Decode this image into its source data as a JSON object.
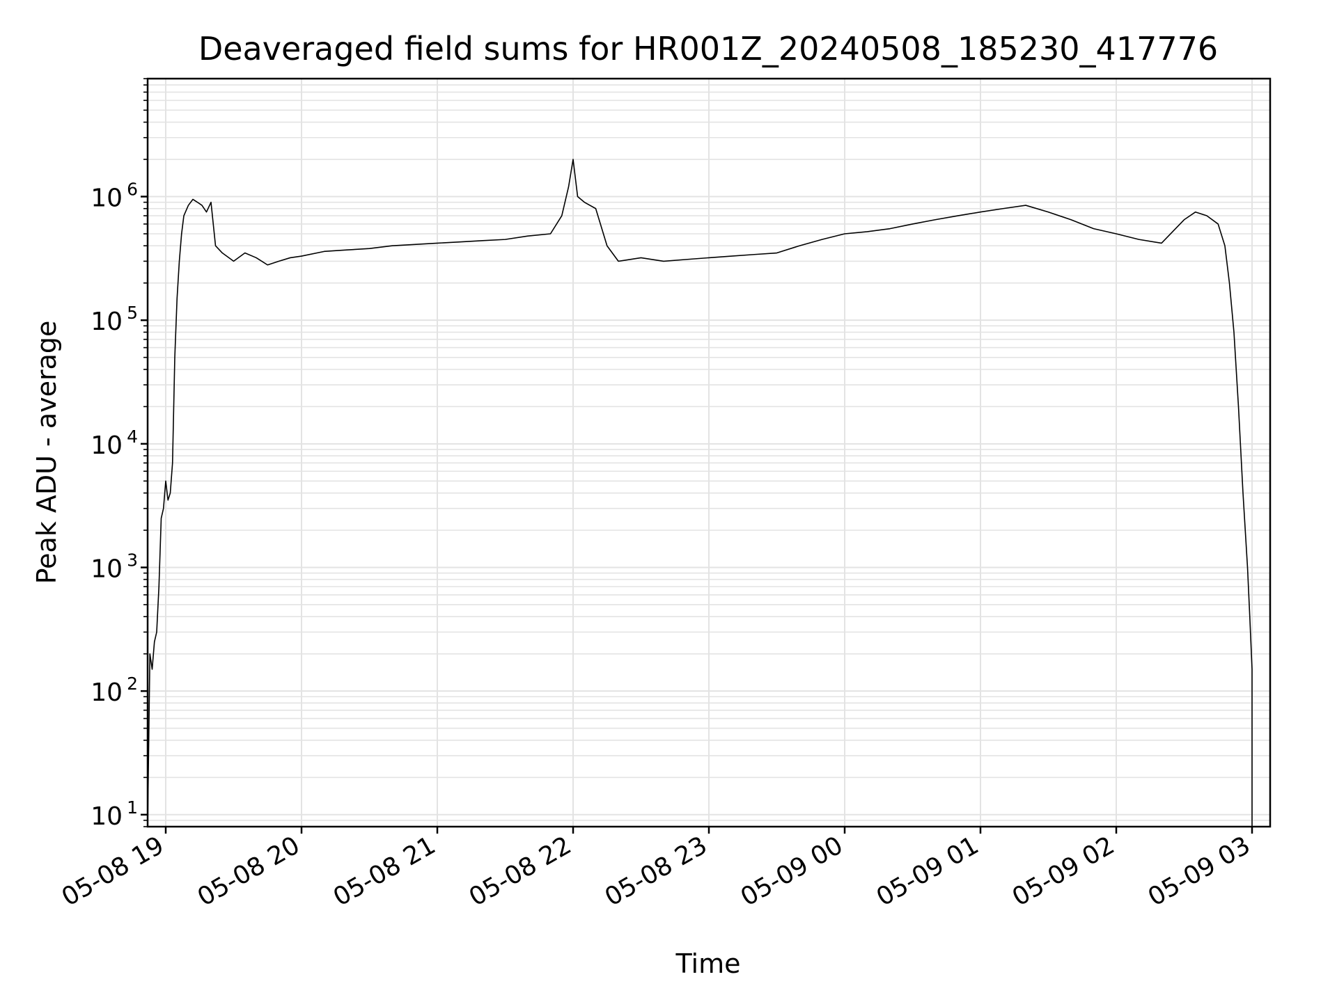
{
  "chart_data": {
    "type": "line",
    "title": "Deaveraged field sums for HR001Z_20240508_185230_417776",
    "xlabel": "Time",
    "ylabel": "Peak ADU - average",
    "yscale": "log",
    "ylim": [
      8,
      9000000
    ],
    "xlim": [
      "2024-05-08 18:52",
      "2024-05-09 03:08"
    ],
    "grid": true,
    "line_color": "#000000",
    "grid_color": "#e3e3e3",
    "x_ticks": [
      {
        "value": "2024-05-08 19:00",
        "label": "05-08 19"
      },
      {
        "value": "2024-05-08 20:00",
        "label": "05-08 20"
      },
      {
        "value": "2024-05-08 21:00",
        "label": "05-08 21"
      },
      {
        "value": "2024-05-08 22:00",
        "label": "05-08 22"
      },
      {
        "value": "2024-05-08 23:00",
        "label": "05-08 23"
      },
      {
        "value": "2024-05-09 00:00",
        "label": "05-09 00"
      },
      {
        "value": "2024-05-09 01:00",
        "label": "05-09 01"
      },
      {
        "value": "2024-05-09 02:00",
        "label": "05-09 02"
      },
      {
        "value": "2024-05-09 03:00",
        "label": "05-09 03"
      }
    ],
    "y_ticks": [
      {
        "value": 10,
        "base": "10",
        "exp": "1"
      },
      {
        "value": 100,
        "base": "10",
        "exp": "2"
      },
      {
        "value": 1000,
        "base": "10",
        "exp": "3"
      },
      {
        "value": 10000,
        "base": "10",
        "exp": "4"
      },
      {
        "value": 100000,
        "base": "10",
        "exp": "5"
      },
      {
        "value": 1000000,
        "base": "10",
        "exp": "6"
      }
    ],
    "series": [
      {
        "points": [
          [
            "2024-05-08 18:52",
            8
          ],
          [
            "2024-05-08 18:53",
            200
          ],
          [
            "2024-05-08 18:54",
            150
          ],
          [
            "2024-05-08 18:55",
            250
          ],
          [
            "2024-05-08 18:56",
            300
          ],
          [
            "2024-05-08 18:57",
            700
          ],
          [
            "2024-05-08 18:58",
            2500
          ],
          [
            "2024-05-08 18:59",
            3000
          ],
          [
            "2024-05-08 19:00",
            5000
          ],
          [
            "2024-05-08 19:01",
            3500
          ],
          [
            "2024-05-08 19:02",
            4000
          ],
          [
            "2024-05-08 19:03",
            7000
          ],
          [
            "2024-05-08 19:04",
            50000
          ],
          [
            "2024-05-08 19:05",
            150000
          ],
          [
            "2024-05-08 19:06",
            300000
          ],
          [
            "2024-05-08 19:07",
            500000
          ],
          [
            "2024-05-08 19:08",
            700000
          ],
          [
            "2024-05-08 19:10",
            850000
          ],
          [
            "2024-05-08 19:12",
            950000
          ],
          [
            "2024-05-08 19:14",
            900000
          ],
          [
            "2024-05-08 19:16",
            850000
          ],
          [
            "2024-05-08 19:18",
            750000
          ],
          [
            "2024-05-08 19:20",
            900000
          ],
          [
            "2024-05-08 19:22",
            400000
          ],
          [
            "2024-05-08 19:25",
            350000
          ],
          [
            "2024-05-08 19:30",
            300000
          ],
          [
            "2024-05-08 19:35",
            350000
          ],
          [
            "2024-05-08 19:40",
            320000
          ],
          [
            "2024-05-08 19:45",
            280000
          ],
          [
            "2024-05-08 19:50",
            300000
          ],
          [
            "2024-05-08 19:55",
            320000
          ],
          [
            "2024-05-08 20:00",
            330000
          ],
          [
            "2024-05-08 20:10",
            360000
          ],
          [
            "2024-05-08 20:20",
            370000
          ],
          [
            "2024-05-08 20:30",
            380000
          ],
          [
            "2024-05-08 20:40",
            400000
          ],
          [
            "2024-05-08 20:50",
            410000
          ],
          [
            "2024-05-08 21:00",
            420000
          ],
          [
            "2024-05-08 21:10",
            430000
          ],
          [
            "2024-05-08 21:20",
            440000
          ],
          [
            "2024-05-08 21:30",
            450000
          ],
          [
            "2024-05-08 21:40",
            480000
          ],
          [
            "2024-05-08 21:50",
            500000
          ],
          [
            "2024-05-08 21:55",
            700000
          ],
          [
            "2024-05-08 21:58",
            1200000
          ],
          [
            "2024-05-08 22:00",
            2000000
          ],
          [
            "2024-05-08 22:02",
            1000000
          ],
          [
            "2024-05-08 22:05",
            900000
          ],
          [
            "2024-05-08 22:10",
            800000
          ],
          [
            "2024-05-08 22:15",
            400000
          ],
          [
            "2024-05-08 22:20",
            300000
          ],
          [
            "2024-05-08 22:30",
            320000
          ],
          [
            "2024-05-08 22:40",
            300000
          ],
          [
            "2024-05-08 22:50",
            310000
          ],
          [
            "2024-05-08 23:00",
            320000
          ],
          [
            "2024-05-08 23:10",
            330000
          ],
          [
            "2024-05-08 23:20",
            340000
          ],
          [
            "2024-05-08 23:30",
            350000
          ],
          [
            "2024-05-08 23:40",
            400000
          ],
          [
            "2024-05-08 23:50",
            450000
          ],
          [
            "2024-05-09 00:00",
            500000
          ],
          [
            "2024-05-09 00:10",
            520000
          ],
          [
            "2024-05-09 00:20",
            550000
          ],
          [
            "2024-05-09 00:30",
            600000
          ],
          [
            "2024-05-09 00:40",
            650000
          ],
          [
            "2024-05-09 00:50",
            700000
          ],
          [
            "2024-05-09 01:00",
            750000
          ],
          [
            "2024-05-09 01:10",
            800000
          ],
          [
            "2024-05-09 01:20",
            850000
          ],
          [
            "2024-05-09 01:30",
            750000
          ],
          [
            "2024-05-09 01:40",
            650000
          ],
          [
            "2024-05-09 01:50",
            550000
          ],
          [
            "2024-05-09 02:00",
            500000
          ],
          [
            "2024-05-09 02:10",
            450000
          ],
          [
            "2024-05-09 02:20",
            420000
          ],
          [
            "2024-05-09 02:30",
            650000
          ],
          [
            "2024-05-09 02:35",
            750000
          ],
          [
            "2024-05-09 02:40",
            700000
          ],
          [
            "2024-05-09 02:45",
            600000
          ],
          [
            "2024-05-09 02:48",
            400000
          ],
          [
            "2024-05-09 02:50",
            200000
          ],
          [
            "2024-05-09 02:52",
            80000
          ],
          [
            "2024-05-09 02:54",
            20000
          ],
          [
            "2024-05-09 02:56",
            4000
          ],
          [
            "2024-05-09 02:58",
            1000
          ],
          [
            "2024-05-09 02:59",
            400
          ],
          [
            "2024-05-09 03:00",
            150
          ],
          [
            "2024-05-09 03:00",
            8
          ]
        ]
      }
    ]
  }
}
